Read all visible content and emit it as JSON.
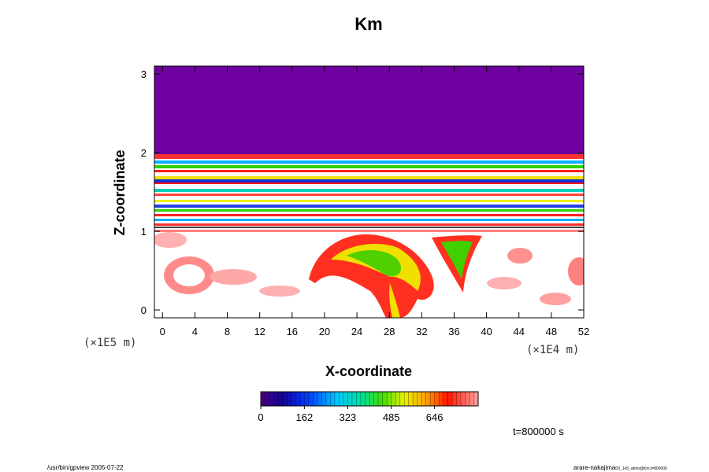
{
  "chart_data": {
    "type": "heatmap",
    "title": "Km",
    "xlabel": "X-coordinate",
    "ylabel": "Z-coordinate",
    "x_scale_note": "(×1E4 m)",
    "y_scale_note": "(×1E5 m)",
    "xlim": [
      -1,
      52
    ],
    "ylim": [
      -0.1,
      3.1
    ],
    "x_ticks": [
      0,
      4,
      8,
      12,
      16,
      20,
      24,
      28,
      32,
      36,
      40,
      44,
      48,
      52
    ],
    "y_ticks": [
      0,
      1,
      2,
      3
    ],
    "colorbar": {
      "min": 0,
      "max": 808,
      "tick_values": [
        0,
        162,
        323,
        485,
        646
      ],
      "tick_labels": [
        "0",
        "162",
        "323",
        "485",
        "646"
      ]
    },
    "time_label": "t=800000 s"
  },
  "footer": {
    "left": "/usr/bin/gpview 2005-07-22",
    "right": "arare-nakajima",
    "right_small": "03_1e5_atmo@Km,t=800000"
  }
}
